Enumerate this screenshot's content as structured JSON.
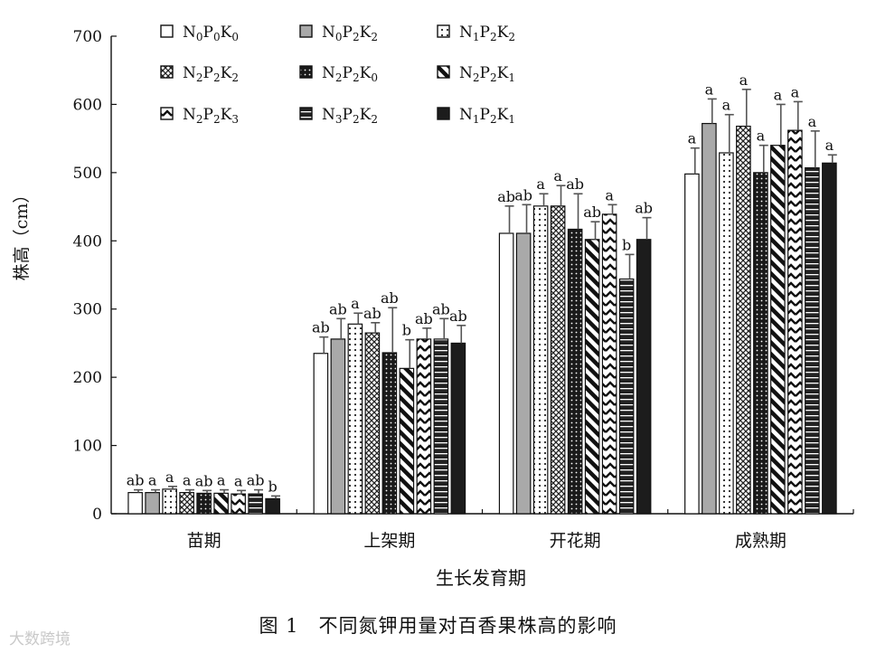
{
  "caption": "图 1　不同氮钾用量对百香果株高的影响",
  "watermark": "大数跨境",
  "chart_data": {
    "type": "bar",
    "ylabel": "株高（cm）",
    "xlabel": "生长发育期",
    "ylim": [
      0,
      700
    ],
    "yticks": [
      0,
      100,
      200,
      300,
      400,
      500,
      600,
      700
    ],
    "grid": false,
    "legend_position": "top-left",
    "categories": [
      "苗期",
      "上架期",
      "开花期",
      "成熟期"
    ],
    "series": [
      {
        "base": "N",
        "sub1": "0",
        "mid": "P",
        "sub2": "0",
        "tail": "K",
        "sub3": "0",
        "pattern": "white",
        "values": [
          31,
          235,
          411,
          498
        ],
        "errors": [
          4,
          24,
          40,
          38
        ],
        "labels": [
          "ab",
          "ab",
          "ab",
          "a"
        ]
      },
      {
        "base": "N",
        "sub1": "0",
        "mid": "P",
        "sub2": "2",
        "tail": "K",
        "sub3": "2",
        "pattern": "gray",
        "values": [
          31,
          256,
          411,
          572
        ],
        "errors": [
          4,
          30,
          42,
          36
        ],
        "labels": [
          "a",
          "ab",
          "ab",
          "a"
        ]
      },
      {
        "base": "N",
        "sub1": "1",
        "mid": "P",
        "sub2": "2",
        "tail": "K",
        "sub3": "2",
        "pattern": "dotted",
        "values": [
          36,
          278,
          451,
          529
        ],
        "errors": [
          4,
          16,
          18,
          56
        ],
        "labels": [
          "a",
          "a",
          "a",
          "a"
        ]
      },
      {
        "base": "N",
        "sub1": "2",
        "mid": "P",
        "sub2": "2",
        "tail": "K",
        "sub3": "2",
        "pattern": "crosshatch",
        "values": [
          31,
          265,
          451,
          568
        ],
        "errors": [
          4,
          15,
          30,
          54
        ],
        "labels": [
          "a",
          "ab",
          "a",
          "a"
        ]
      },
      {
        "base": "N",
        "sub1": "2",
        "mid": "P",
        "sub2": "2",
        "tail": "K",
        "sub3": "0",
        "pattern": "darkdots",
        "values": [
          30,
          236,
          417,
          500
        ],
        "errors": [
          4,
          66,
          52,
          40
        ],
        "labels": [
          "ab",
          "ab",
          "ab",
          "a"
        ]
      },
      {
        "base": "N",
        "sub1": "2",
        "mid": "P",
        "sub2": "2",
        "tail": "K",
        "sub3": "1",
        "pattern": "diagonal",
        "values": [
          30,
          213,
          402,
          540
        ],
        "errors": [
          5,
          42,
          26,
          60
        ],
        "labels": [
          "a",
          "b",
          "ab",
          "a"
        ]
      },
      {
        "base": "N",
        "sub1": "2",
        "mid": "P",
        "sub2": "2",
        "tail": "K",
        "sub3": "3",
        "pattern": "zigzag",
        "values": [
          29,
          256,
          439,
          562
        ],
        "errors": [
          5,
          16,
          14,
          42
        ],
        "labels": [
          "a",
          "ab",
          "a",
          "a"
        ]
      },
      {
        "base": "N",
        "sub1": "3",
        "mid": "P",
        "sub2": "2",
        "tail": "K",
        "sub3": "2",
        "pattern": "darkstripe",
        "values": [
          29,
          256,
          344,
          507
        ],
        "errors": [
          6,
          30,
          36,
          54
        ],
        "labels": [
          "ab",
          "ab",
          "b",
          "a"
        ]
      },
      {
        "base": "N",
        "sub1": "1",
        "mid": "P",
        "sub2": "2",
        "tail": "K",
        "sub3": "1",
        "pattern": "black",
        "values": [
          22,
          250,
          402,
          514
        ],
        "errors": [
          4,
          26,
          32,
          12
        ],
        "labels": [
          "b",
          "ab",
          "ab",
          "a"
        ]
      }
    ]
  }
}
